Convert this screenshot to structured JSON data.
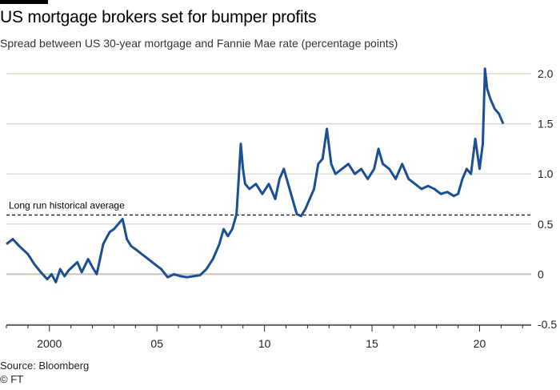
{
  "header": {
    "title": "US mortgage brokers set for bumper profits",
    "subtitle": "Spread between US 30-year mortgage and Fannie Mae rate (percentage points)"
  },
  "footer": {
    "source": "Source: Bloomberg",
    "credit": "© FT"
  },
  "colors": {
    "line": "#1a4f93",
    "grid": "#d9d3c6",
    "zero": "#c9c1b1",
    "axis": "#222222"
  },
  "chart_data": {
    "type": "line",
    "title": "US mortgage brokers set for bumper profits",
    "subtitle": "Spread between US 30-year mortgage and Fannie Mae rate (percentage points)",
    "xlabel": "",
    "ylabel": "",
    "xlim": [
      1998.0,
      2022.4
    ],
    "ylim": [
      -0.5,
      2.0
    ],
    "yticks": [
      -0.5,
      0,
      0.5,
      1.0,
      1.5,
      2.0
    ],
    "ytick_labels": [
      "-0.5",
      "0",
      "0.5",
      "1.0",
      "1.5",
      "2.0"
    ],
    "xticks": [
      2000,
      2005,
      2010,
      2015,
      2020
    ],
    "xtick_labels": [
      "2000",
      "05",
      "10",
      "15",
      "20"
    ],
    "grid": true,
    "annotations": [
      {
        "text": "Long run historical average",
        "value": 0.59,
        "style": "dashed"
      }
    ],
    "series": [
      {
        "name": "Spread",
        "x": [
          1998.0,
          1998.3,
          1998.6,
          1999.0,
          1999.3,
          1999.6,
          1999.9,
          2000.1,
          2000.3,
          2000.5,
          2000.7,
          2000.9,
          2001.1,
          2001.3,
          2001.5,
          2001.8,
          2002.0,
          2002.2,
          2002.5,
          2002.8,
          2003.0,
          2003.2,
          2003.4,
          2003.6,
          2003.8,
          2004.0,
          2004.3,
          2004.6,
          2004.9,
          2005.2,
          2005.5,
          2005.8,
          2006.1,
          2006.4,
          2006.7,
          2007.0,
          2007.3,
          2007.6,
          2007.9,
          2008.1,
          2008.3,
          2008.5,
          2008.7,
          2008.9,
          2009.0,
          2009.1,
          2009.3,
          2009.6,
          2009.9,
          2010.2,
          2010.5,
          2010.7,
          2010.9,
          2011.1,
          2011.3,
          2011.5,
          2011.7,
          2011.9,
          2012.1,
          2012.3,
          2012.5,
          2012.7,
          2012.9,
          2013.1,
          2013.3,
          2013.6,
          2013.9,
          2014.2,
          2014.5,
          2014.8,
          2015.1,
          2015.3,
          2015.5,
          2015.8,
          2016.1,
          2016.4,
          2016.7,
          2017.0,
          2017.3,
          2017.6,
          2017.9,
          2018.2,
          2018.5,
          2018.8,
          2019.0,
          2019.2,
          2019.4,
          2019.6,
          2019.8,
          2020.0,
          2020.15,
          2020.25,
          2020.35,
          2020.5,
          2020.7,
          2020.9,
          2021.1
        ],
        "values": [
          0.3,
          0.35,
          0.28,
          0.2,
          0.1,
          0.02,
          -0.05,
          0.0,
          -0.08,
          0.05,
          -0.02,
          0.04,
          0.08,
          0.12,
          0.02,
          0.15,
          0.07,
          0.0,
          0.3,
          0.42,
          0.45,
          0.5,
          0.55,
          0.35,
          0.28,
          0.25,
          0.2,
          0.15,
          0.1,
          0.05,
          -0.03,
          0.0,
          -0.02,
          -0.03,
          -0.02,
          -0.01,
          0.05,
          0.15,
          0.3,
          0.45,
          0.38,
          0.45,
          0.6,
          1.3,
          1.05,
          0.9,
          0.85,
          0.9,
          0.8,
          0.9,
          0.75,
          0.95,
          1.05,
          0.9,
          0.75,
          0.6,
          0.58,
          0.65,
          0.75,
          0.85,
          1.1,
          1.15,
          1.45,
          1.1,
          1.0,
          1.05,
          1.1,
          1.0,
          1.05,
          0.95,
          1.05,
          1.25,
          1.1,
          1.05,
          0.95,
          1.1,
          0.95,
          0.9,
          0.85,
          0.88,
          0.85,
          0.8,
          0.82,
          0.78,
          0.8,
          0.95,
          1.05,
          1.0,
          1.35,
          1.05,
          1.3,
          2.05,
          1.85,
          1.75,
          1.65,
          1.6,
          1.5
        ]
      }
    ]
  }
}
